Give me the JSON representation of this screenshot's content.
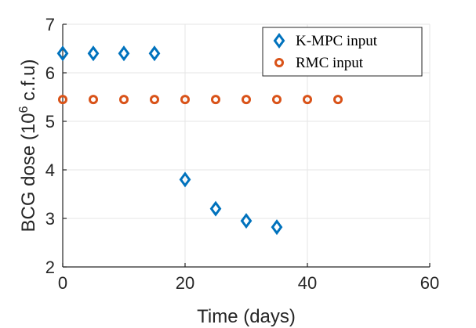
{
  "chart_data": {
    "type": "scatter",
    "title": "",
    "xlabel": "Time (days)",
    "ylabel_parts": {
      "before": "BCG dose (10",
      "exp": "6",
      "after": " c.f.u)"
    },
    "xlim": [
      0,
      60
    ],
    "ylim": [
      2,
      7
    ],
    "xticks": [
      0,
      20,
      40,
      60
    ],
    "yticks": [
      2,
      3,
      4,
      5,
      6,
      7
    ],
    "grid": true,
    "legend_position": "top-right",
    "series": [
      {
        "name": "K-MPC input",
        "marker": "diamond",
        "color": "#0072BD",
        "points": [
          [
            0,
            6.4
          ],
          [
            5,
            6.4
          ],
          [
            10,
            6.4
          ],
          [
            15,
            6.4
          ],
          [
            20,
            3.8
          ],
          [
            25,
            3.2
          ],
          [
            30,
            2.95
          ],
          [
            35,
            2.82
          ]
        ]
      },
      {
        "name": "RMC input",
        "marker": "circle",
        "color": "#D95319",
        "points": [
          [
            0,
            5.45
          ],
          [
            5,
            5.45
          ],
          [
            10,
            5.45
          ],
          [
            15,
            5.45
          ],
          [
            20,
            5.45
          ],
          [
            25,
            5.45
          ],
          [
            30,
            5.45
          ],
          [
            35,
            5.45
          ],
          [
            40,
            5.45
          ],
          [
            45,
            5.45
          ]
        ]
      }
    ]
  }
}
